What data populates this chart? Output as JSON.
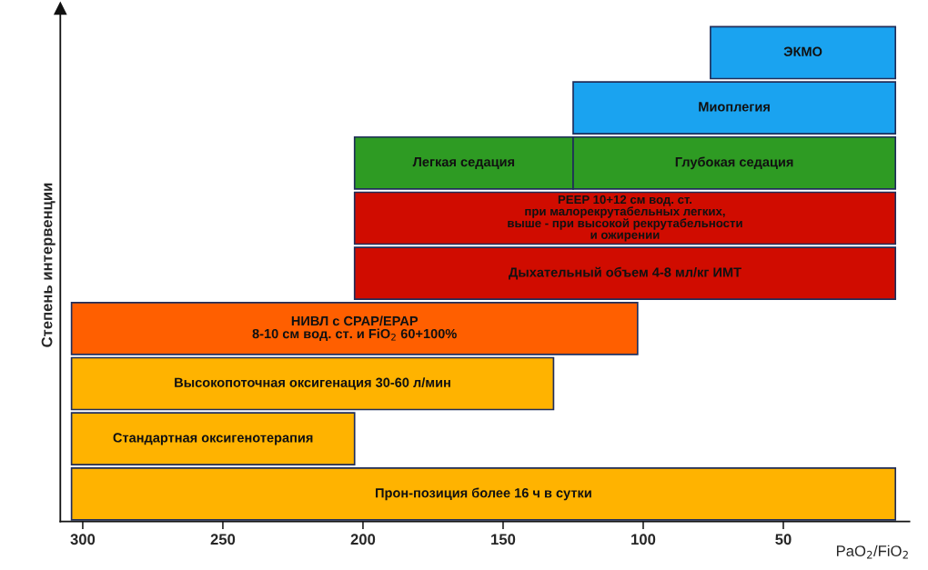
{
  "chart_data": {
    "type": "bar",
    "orientation": "horizontal",
    "categories": [
      "ЭКМО",
      "Миоплегия",
      "Легкая седация",
      "PEEP 10+12 см вод. ст.\nпри малорекрутабельных легких,\nвыше - при высокой рекрутабельности\nи ожирении",
      "Дыхательный объем 4-8 мл/кг ИМТ",
      "НИВЛ с CPAP/EPAP\n8-10 см вод. ст. и FiO$_{2}$ 60+100%",
      "Высокопоточная оксигенация 30-60 л/мин",
      "Стандартная оксигенотерапия",
      "Прон-позиция более 16 ч в сутки"
    ],
    "series": [
      {
        "values": [
          66,
          115,
          78,
          193,
          193,
          202,
          172,
          101,
          294
        ],
        "base": [
          10,
          10,
          125,
          10,
          10,
          102,
          132,
          203,
          10
        ],
        "colors": [
          "#1aa3f0",
          "#1aa3f0",
          "#2e9b23",
          "#d00c00",
          "#d00c00",
          "#ff5f00",
          "#ffb300",
          "#ffb300",
          "#ffb300"
        ]
      },
      {
        "name": "Глубокая седация",
        "color": "#2e9b23",
        "values": [
          null,
          null,
          115,
          null,
          null,
          null,
          null,
          null,
          null
        ],
        "base": [
          null,
          null,
          10,
          null,
          null,
          null,
          null,
          null,
          null
        ]
      }
    ],
    "xlim": [
      308,
      5
    ],
    "xticks": [
      300,
      250,
      200,
      150,
      100,
      50
    ],
    "xlabel": "PaO$_{2}$/FiO$_{2}$",
    "ylabel": "Степень интервенции"
  }
}
